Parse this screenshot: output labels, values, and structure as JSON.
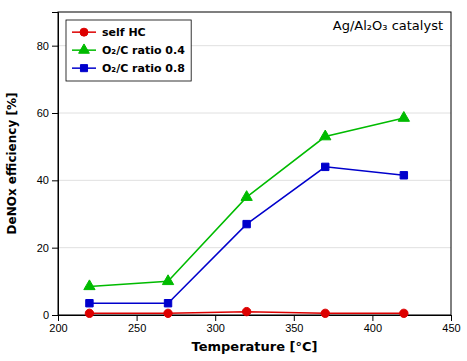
{
  "chart_data": {
    "type": "line",
    "title": "Ag/Al₂O₃ catalyst",
    "xlabel": "Temperature [°C]",
    "ylabel": "DeNOx efficiency [%]",
    "x": [
      220,
      270,
      320,
      370,
      420
    ],
    "series": [
      {
        "name": "self HC",
        "color": "#dd0000",
        "marker": "circle",
        "line_style": "solid",
        "values": [
          0.5,
          0.5,
          1.0,
          0.5,
          0.5
        ]
      },
      {
        "name": "O₂/C ratio 0.4",
        "color": "#00bb00",
        "marker": "triangle",
        "line_style": "solid",
        "values": [
          8.5,
          10.0,
          35.0,
          53.0,
          58.5
        ]
      },
      {
        "name": "O₂/C ratio 0.8",
        "color": "#0000cc",
        "marker": "square",
        "line_style": "solid",
        "values": [
          3.5,
          3.5,
          27.0,
          44.0,
          41.5
        ]
      }
    ],
    "xlim": [
      200,
      450
    ],
    "ylim": [
      0,
      90
    ],
    "xticks": [
      200,
      250,
      300,
      350,
      400,
      450
    ],
    "yticks": [
      0,
      20,
      40,
      60,
      80
    ],
    "grid": "y",
    "legend": "upper left"
  }
}
